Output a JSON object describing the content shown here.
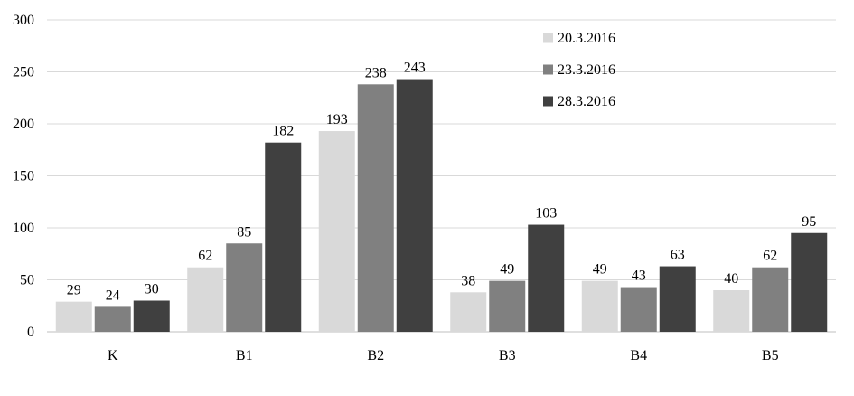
{
  "chart_data": {
    "type": "bar",
    "title": "",
    "xlabel": "",
    "ylabel": "",
    "categories": [
      "K",
      "B1",
      "B2",
      "B3",
      "B4",
      "B5"
    ],
    "series": [
      {
        "name": "20.3.2016",
        "color": "#d9d9d9",
        "values": [
          29,
          62,
          193,
          38,
          49,
          40
        ]
      },
      {
        "name": "23.3.2016",
        "color": "#808080",
        "values": [
          24,
          85,
          238,
          49,
          43,
          62
        ]
      },
      {
        "name": "28.3.2016",
        "color": "#404040",
        "values": [
          30,
          182,
          243,
          103,
          63,
          95
        ]
      }
    ],
    "ylim": [
      0,
      300
    ],
    "yticks": [
      0,
      50,
      100,
      150,
      200,
      250,
      300
    ],
    "grid": true,
    "data_labels": true,
    "legend_position": "top-right"
  }
}
